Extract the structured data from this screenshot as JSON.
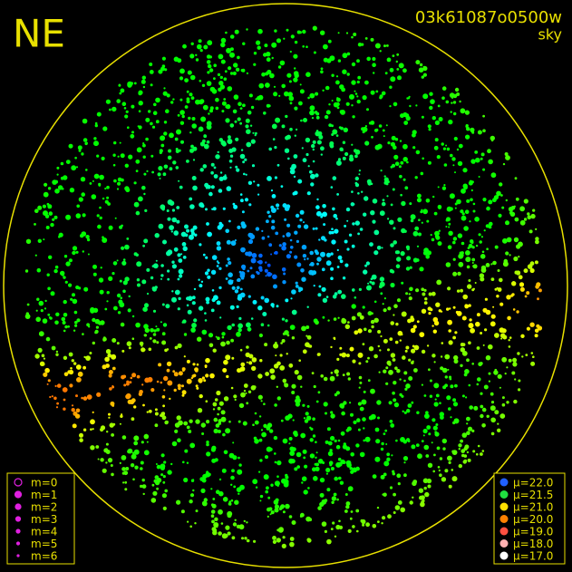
{
  "corner_label": "NE",
  "title": "03k61087o0500w",
  "subtitle": "sky",
  "magnitude_legend": {
    "marker_color": "#e020e0",
    "entries": [
      "m=0",
      "m=1",
      "m=2",
      "m=3",
      "m=4",
      "m=5",
      "m=6"
    ]
  },
  "sky_brightness_legend": {
    "entries": [
      {
        "label": "μ=22.0",
        "color": "#2060ff"
      },
      {
        "label": "μ=21.5",
        "color": "#20e040"
      },
      {
        "label": "μ=21.0",
        "color": "#ffe000"
      },
      {
        "label": "μ=20.0",
        "color": "#ff8000"
      },
      {
        "label": "μ=19.0",
        "color": "#ff5040"
      },
      {
        "label": "μ=18.0",
        "color": "#ffb0b0"
      },
      {
        "label": "μ=17.0",
        "color": "#ffffff"
      }
    ]
  }
}
